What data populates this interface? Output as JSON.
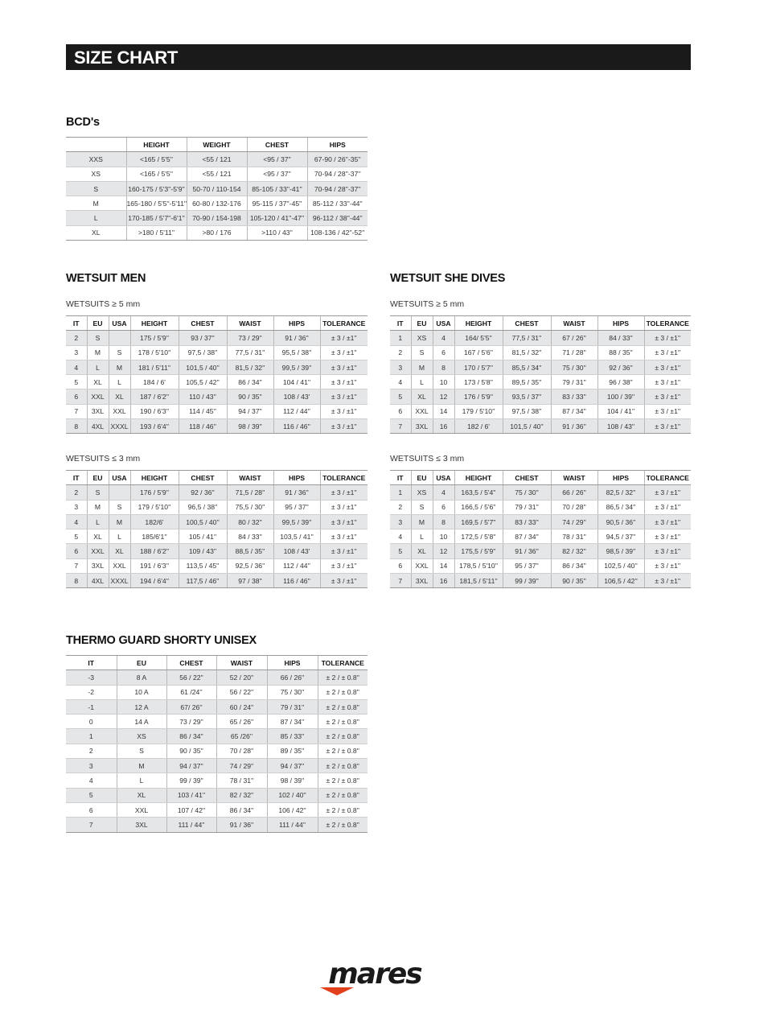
{
  "title": "SIZE CHART",
  "bcd": {
    "heading": "BCD's",
    "columns": [
      "",
      "HEIGHT",
      "WEIGHT",
      "CHEST",
      "HIPS"
    ],
    "rows": [
      [
        "XXS",
        "<165 / 5'5''",
        "<55 / 121",
        "<95 / 37''",
        "67-90 / 26''-35''"
      ],
      [
        "XS",
        "<165 / 5'5''",
        "<55 / 121",
        "<95 / 37''",
        "70-94 / 28''-37''"
      ],
      [
        "S",
        "160-175 / 5'3''-5'9''",
        "50-70 / 110-154",
        "85-105 / 33''-41''",
        "70-94 / 28''-37''"
      ],
      [
        "M",
        "165-180 / 5'5''-5'11''",
        "60-80 / 132-176",
        "95-115 / 37''-45''",
        "85-112 / 33''-44''"
      ],
      [
        "L",
        "170-185 / 5'7''-6'1''",
        "70-90 / 154-198",
        "105-120 / 41''-47''",
        "96-112 / 38''-44''"
      ],
      [
        "XL",
        ">180 / 5'11''",
        ">80 / 176",
        ">110 / 43''",
        "108-136 / 42''-52''"
      ]
    ]
  },
  "wetsuit_men": {
    "heading": "WETSUIT MEN",
    "columns": [
      "IT",
      "EU",
      "USA",
      "HEIGHT",
      "CHEST",
      "WAIST",
      "HIPS",
      "TOLERANCE"
    ],
    "thick": {
      "label": "WETSUITS ≥ 5 mm",
      "rows": [
        [
          "2",
          "S",
          "",
          "175 / 5'9''",
          "93 / 37''",
          "73 / 29''",
          "91 / 36''",
          "± 3 / ±1''"
        ],
        [
          "3",
          "M",
          "S",
          "178 / 5'10''",
          "97,5 / 38''",
          "77,5 / 31''",
          "95,5 / 38''",
          "± 3 / ±1''"
        ],
        [
          "4",
          "L",
          "M",
          "181 / 5'11''",
          "101,5 / 40''",
          "81,5 / 32''",
          "99,5 / 39''",
          "± 3 / ±1''"
        ],
        [
          "5",
          "XL",
          "L",
          "184 / 6'",
          "105,5 / 42''",
          "86 / 34''",
          "104 / 41''",
          "± 3 / ±1''"
        ],
        [
          "6",
          "XXL",
          "XL",
          "187 / 6'2''",
          "110 / 43''",
          "90 / 35''",
          "108 / 43'",
          "± 3 / ±1''"
        ],
        [
          "7",
          "3XL",
          "XXL",
          "190 / 6'3''",
          "114 / 45''",
          "94 / 37''",
          "112 / 44''",
          "± 3 / ±1''"
        ],
        [
          "8",
          "4XL",
          "XXXL",
          "193 / 6'4''",
          "118 / 46''",
          "98 / 39''",
          "116 / 46''",
          "± 3 / ±1''"
        ]
      ]
    },
    "thin": {
      "label": "WETSUITS ≤ 3 mm",
      "rows": [
        [
          "2",
          "S",
          "",
          "176 / 5'9''",
          "92 / 36''",
          "71,5 / 28''",
          "91 / 36''",
          "± 3 / ±1''"
        ],
        [
          "3",
          "M",
          "S",
          "179 / 5'10''",
          "96,5 / 38''",
          "75,5 / 30''",
          "95 / 37''",
          "± 3 / ±1''"
        ],
        [
          "4",
          "L",
          "M",
          "182/6'",
          "100,5 / 40''",
          "80 / 32''",
          "99,5 / 39''",
          "± 3 / ±1''"
        ],
        [
          "5",
          "XL",
          "L",
          "185/6'1''",
          "105 / 41''",
          "84 / 33''",
          "103,5 / 41''",
          "± 3 / ±1''"
        ],
        [
          "6",
          "XXL",
          "XL",
          "188 / 6'2''",
          "109 / 43''",
          "88,5 / 35''",
          "108 / 43'",
          "± 3 / ±1''"
        ],
        [
          "7",
          "3XL",
          "XXL",
          "191 / 6'3''",
          "113,5 / 45''",
          "92,5 / 36''",
          "112 / 44''",
          "± 3 / ±1''"
        ],
        [
          "8",
          "4XL",
          "XXXL",
          "194 / 6'4''",
          "117,5 / 46''",
          "97 / 38''",
          "116 / 46''",
          "± 3 / ±1''"
        ]
      ]
    }
  },
  "wetsuit_she": {
    "heading": "WETSUIT SHE DIVES",
    "columns": [
      "IT",
      "EU",
      "USA",
      "HEIGHT",
      "CHEST",
      "WAIST",
      "HIPS",
      "TOLERANCE"
    ],
    "thick": {
      "label": "WETSUITS ≥ 5 mm",
      "rows": [
        [
          "1",
          "XS",
          "4",
          "164/ 5'5''",
          "77,5 / 31''",
          "67 / 26''",
          "84 / 33''",
          "± 3 / ±1''"
        ],
        [
          "2",
          "S",
          "6",
          "167 / 5'6''",
          "81,5 / 32''",
          "71 / 28''",
          "88 / 35''",
          "± 3 / ±1''"
        ],
        [
          "3",
          "M",
          "8",
          "170 / 5'7''",
          "85,5 / 34''",
          "75 / 30''",
          "92 / 36''",
          "± 3 / ±1''"
        ],
        [
          "4",
          "L",
          "10",
          "173 / 5'8''",
          "89,5 / 35''",
          "79 / 31''",
          "96 / 38''",
          "± 3 / ±1''"
        ],
        [
          "5",
          "XL",
          "12",
          "176 / 5'9''",
          "93,5 / 37''",
          "83 / 33''",
          "100 / 39''",
          "± 3 / ±1''"
        ],
        [
          "6",
          "XXL",
          "14",
          "179 / 5'10''",
          "97,5 / 38''",
          "87 / 34''",
          "104 / 41''",
          "± 3 / ±1''"
        ],
        [
          "7",
          "3XL",
          "16",
          "182 / 6'",
          "101,5 / 40''",
          "91 / 36''",
          "108 / 43''",
          "± 3 / ±1''"
        ]
      ]
    },
    "thin": {
      "label": "WETSUITS ≤ 3 mm",
      "rows": [
        [
          "1",
          "XS",
          "4",
          "163,5 / 5'4''",
          "75 / 30''",
          "66 / 26''",
          "82,5 / 32''",
          "± 3 / ±1''"
        ],
        [
          "2",
          "S",
          "6",
          "166,5 / 5'6''",
          "79 / 31''",
          "70 / 28''",
          "86,5 / 34''",
          "± 3 / ±1''"
        ],
        [
          "3",
          "M",
          "8",
          "169,5 / 5'7''",
          "83 / 33''",
          "74 / 29''",
          "90,5 / 36''",
          "± 3 / ±1''"
        ],
        [
          "4",
          "L",
          "10",
          "172,5 / 5'8''",
          "87 / 34''",
          "78 / 31''",
          "94,5 / 37''",
          "± 3 / ±1''"
        ],
        [
          "5",
          "XL",
          "12",
          "175,5 / 5'9''",
          "91 / 36''",
          "82 / 32''",
          "98,5 / 39''",
          "± 3 / ±1''"
        ],
        [
          "6",
          "XXL",
          "14",
          "178,5 / 5'10''",
          "95 / 37''",
          "86 / 34''",
          "102,5 / 40''",
          "± 3 / ±1''"
        ],
        [
          "7",
          "3XL",
          "16",
          "181,5 / 5'11''",
          "99 / 39''",
          "90 / 35''",
          "106,5 / 42''",
          "± 3 / ±1''"
        ]
      ]
    }
  },
  "thermo": {
    "heading": "THERMO GUARD SHORTY UNISEX",
    "columns": [
      "IT",
      "EU",
      "CHEST",
      "WAIST",
      "HIPS",
      "TOLERANCE"
    ],
    "rows": [
      [
        "-3",
        "8 A",
        "56 / 22''",
        "52 / 20''",
        "66 / 26''",
        "± 2 / ± 0.8''"
      ],
      [
        "-2",
        "10 A",
        "61 /24''",
        "56 / 22''",
        "75 / 30''",
        "± 2 / ± 0.8''"
      ],
      [
        "-1",
        "12 A",
        "67/ 26''",
        "60 / 24''",
        "79 / 31''",
        "± 2 / ± 0.8''"
      ],
      [
        "0",
        "14 A",
        "73 / 29''",
        "65 / 26''",
        "87 / 34''",
        "± 2 / ± 0.8''"
      ],
      [
        "1",
        "XS",
        "86 / 34''",
        "65 /26''",
        "85 / 33''",
        "± 2 / ± 0.8''"
      ],
      [
        "2",
        "S",
        "90 / 35''",
        "70 / 28''",
        "89 / 35''",
        "± 2 / ± 0.8''"
      ],
      [
        "3",
        "M",
        "94 / 37''",
        "74 / 29''",
        "94 / 37''",
        "± 2 / ± 0.8''"
      ],
      [
        "4",
        "L",
        "99 / 39''",
        "78 / 31''",
        "98 / 39''",
        "± 2 / ± 0.8''"
      ],
      [
        "5",
        "XL",
        "103 / 41''",
        "82 / 32''",
        "102 / 40''",
        "± 2 / ± 0.8''"
      ],
      [
        "6",
        "XXL",
        "107 / 42''",
        "86 / 34''",
        "106 / 42''",
        "± 2 / ± 0.8''"
      ],
      [
        "7",
        "3XL",
        "111 / 44''",
        "91 / 36''",
        "111 / 44''",
        "± 2 / ± 0.8''"
      ]
    ]
  },
  "logo": {
    "text": "mares",
    "accent": "#e2401c"
  },
  "colors": {
    "title_bar": "#1a1a1a",
    "stripe": "#e5e6e7"
  }
}
